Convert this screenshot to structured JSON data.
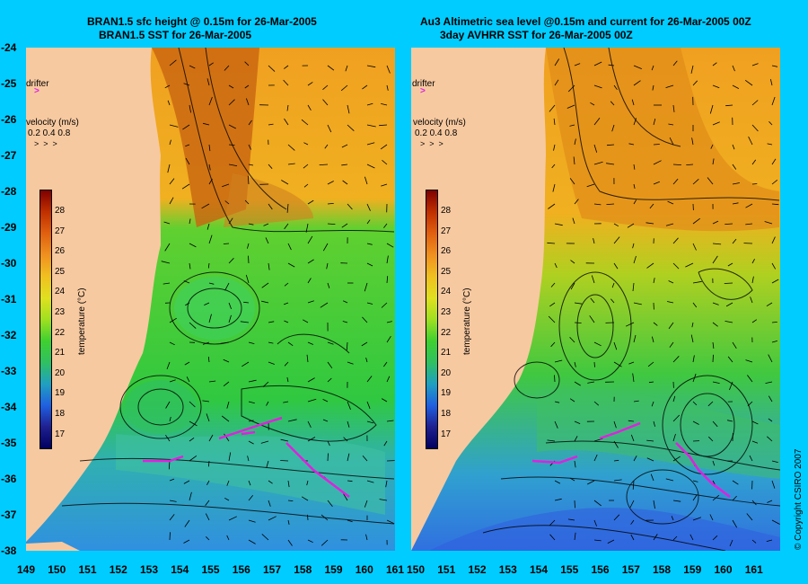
{
  "titles": {
    "left_line1": "BRAN1.5 sfc height @ 0.15m for 26-Mar-2005",
    "left_line2": "BRAN1.5 SST for 26-Mar-2005",
    "right_line1": "Au3 Altimetric sea level  @0.15m and current for 26-Mar-2005 00Z",
    "right_line2": "3day AVHRR SST for 26-Mar-2005 00Z"
  },
  "lat_labels": [
    "-24",
    "-25",
    "-26",
    "-27",
    "-28",
    "-29",
    "-30",
    "-31",
    "-32",
    "-33",
    "-34",
    "-35",
    "-36",
    "-37",
    "-38"
  ],
  "lon_left": [
    "149",
    "150",
    "151",
    "152",
    "153",
    "154",
    "155",
    "156",
    "157",
    "158",
    "159",
    "160",
    "161"
  ],
  "lon_right": [
    "150",
    "151",
    "152",
    "153",
    "154",
    "155",
    "156",
    "157",
    "158",
    "159",
    "160",
    "161"
  ],
  "left_lon_first": "149",
  "legend": {
    "drifter": "drifter",
    "velocity_title": "velocity (m/s)",
    "velocity_values": "0.2 0.4 0.8",
    "colorbar_title": "temperature (°C)",
    "colorbar_ticks": [
      "28",
      "27",
      "26",
      "25",
      "24",
      "23",
      "22",
      "21",
      "20",
      "19",
      "18",
      "17"
    ]
  },
  "copyright": "© Copyright CSIRO 2007",
  "colors": {
    "background": "#00ccff",
    "land": "#f7c9a0",
    "drifter": "#e020e0"
  }
}
